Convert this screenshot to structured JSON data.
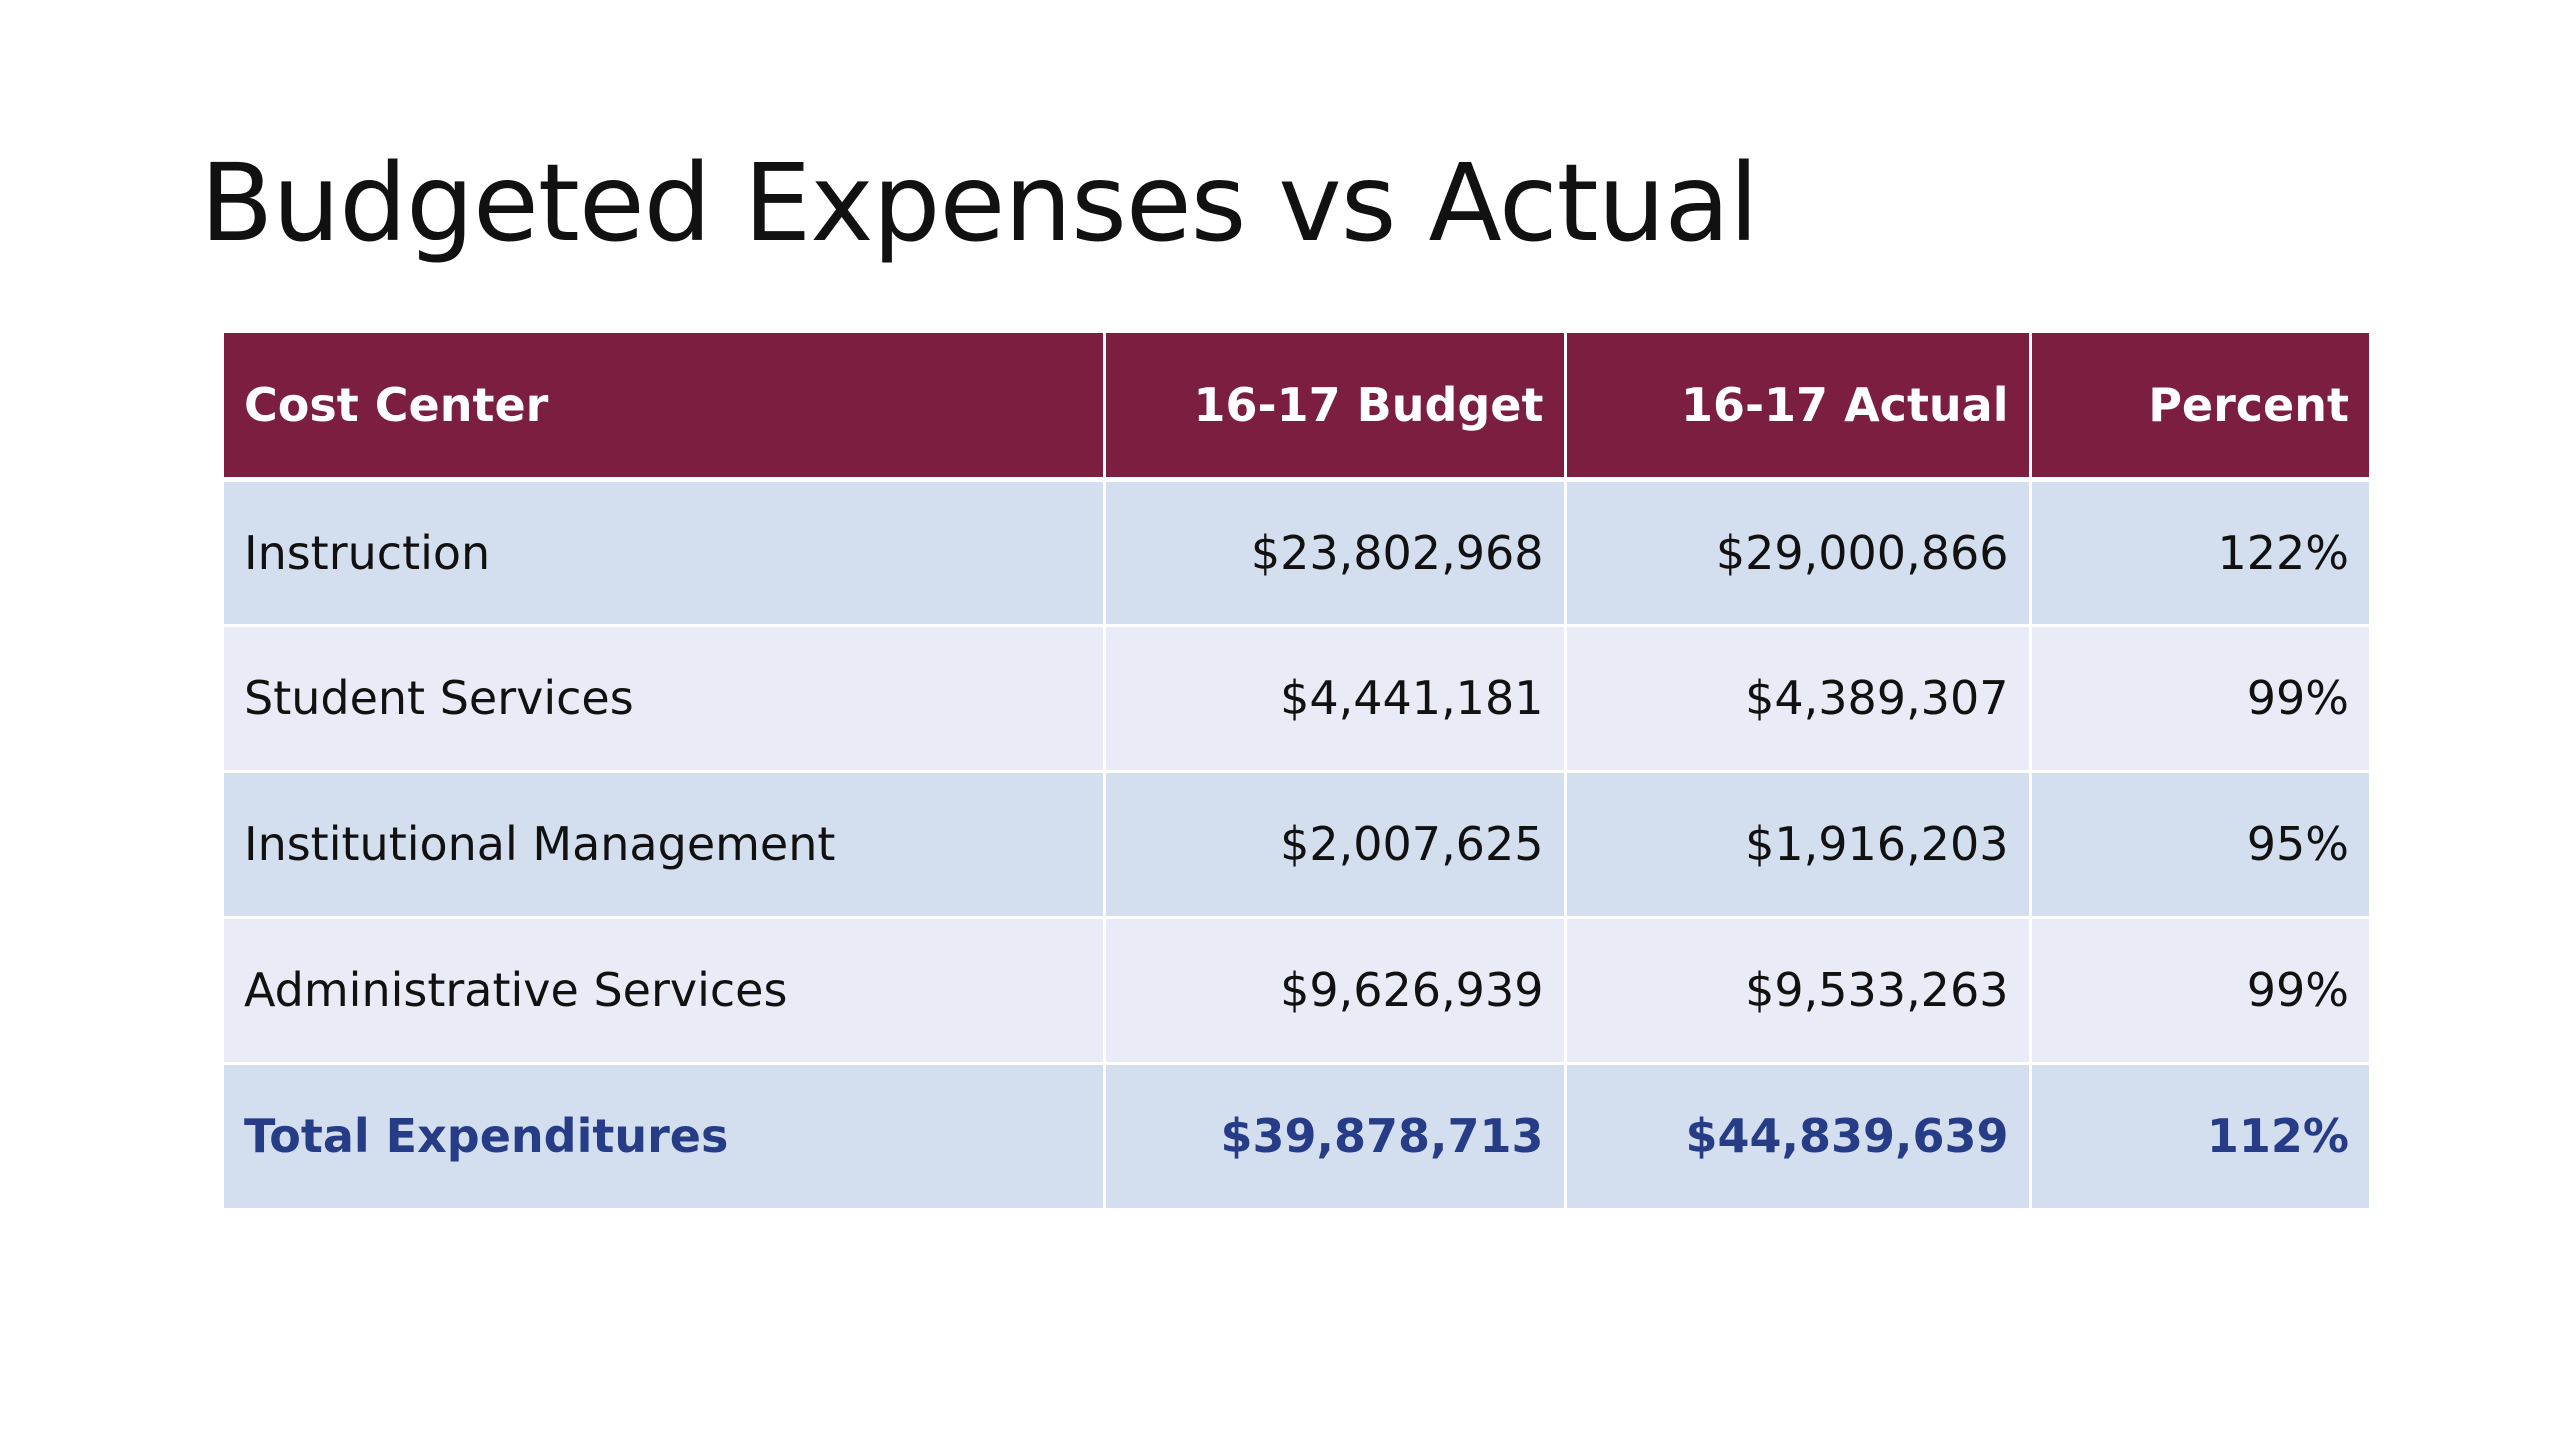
{
  "slide": {
    "title": "Budgeted Expenses vs Actual"
  },
  "table": {
    "headers": [
      "Cost Center",
      "16-17 Budget",
      "16-17 Actual",
      "Percent"
    ],
    "rows": [
      {
        "cost_center": "Instruction",
        "budget": "$23,802,968",
        "actual": "$29,000,866",
        "percent": "122%"
      },
      {
        "cost_center": "Student Services",
        "budget": "$4,441,181",
        "actual": "$4,389,307",
        "percent": "99%"
      },
      {
        "cost_center": "Institutional Management",
        "budget": "$2,007,625",
        "actual": "$1,916,203",
        "percent": "95%"
      },
      {
        "cost_center": "Administrative Services",
        "budget": "$9,626,939",
        "actual": "$9,533,263",
        "percent": "99%"
      }
    ],
    "total": {
      "cost_center": "Total Expenditures",
      "budget": "$39,878,713",
      "actual": "$44,839,639",
      "percent": "112%"
    }
  },
  "colors": {
    "header_bg": "#7b1e40",
    "row_odd_bg": "#d3dfee",
    "row_even_bg": "#e9ecf6",
    "total_text": "#263c86"
  }
}
